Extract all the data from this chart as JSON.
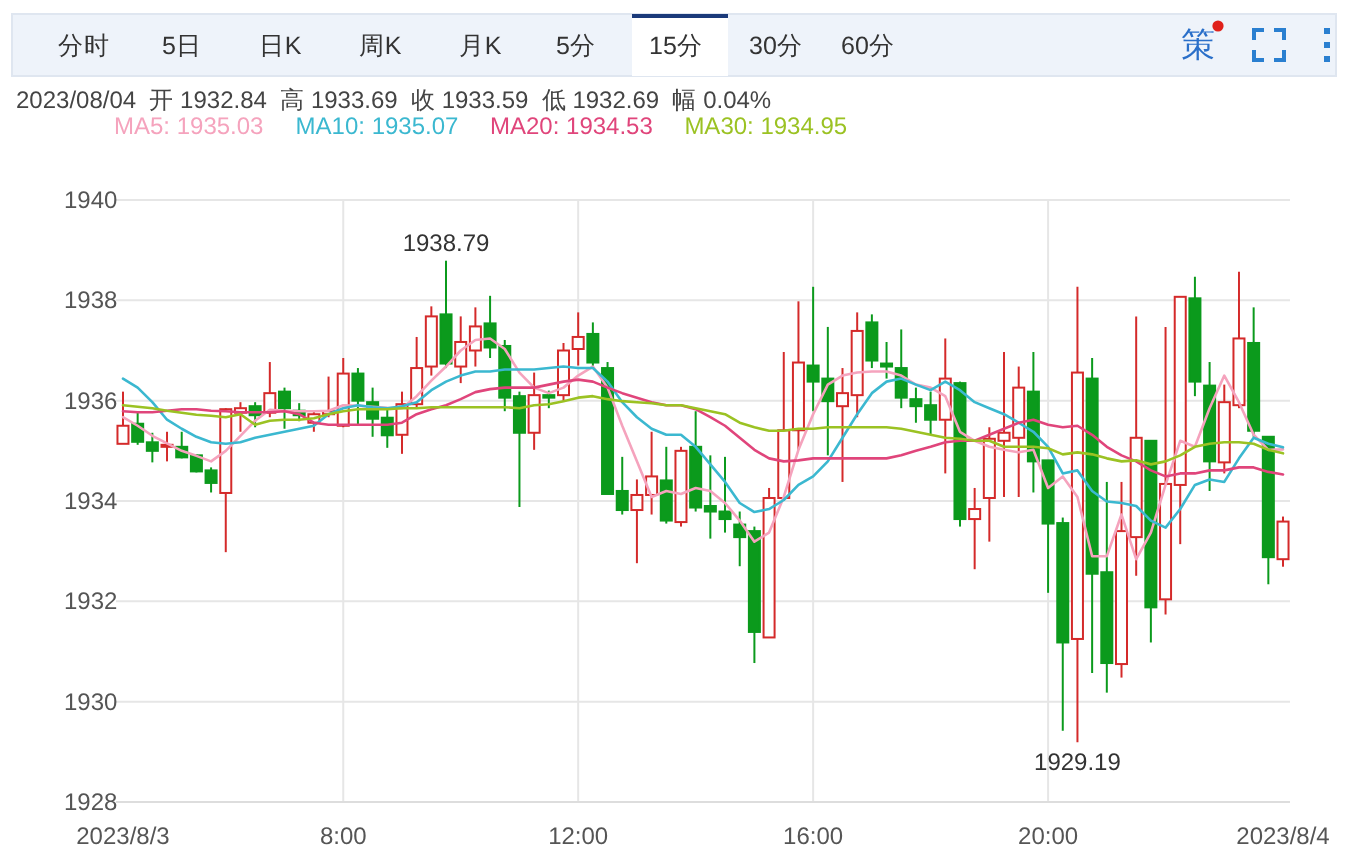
{
  "chart_data": {
    "type": "candlestick",
    "categories": [
      "2023/8/3",
      null,
      null,
      null,
      null,
      null,
      null,
      null,
      null,
      null,
      null,
      null,
      null,
      null,
      null,
      "8:00",
      null,
      null,
      null,
      null,
      null,
      null,
      null,
      null,
      null,
      null,
      null,
      null,
      null,
      null,
      null,
      "12:00",
      null,
      null,
      null,
      null,
      null,
      null,
      null,
      null,
      null,
      null,
      null,
      null,
      null,
      null,
      null,
      "16:00",
      null,
      null,
      null,
      null,
      null,
      null,
      null,
      null,
      null,
      null,
      null,
      null,
      null,
      null,
      null,
      "20:00",
      null,
      null,
      null,
      null,
      null,
      null,
      null,
      null,
      null,
      null,
      null,
      null,
      null,
      null,
      null,
      "2023/8/4"
    ],
    "ohlc": [
      [
        1935.14,
        1936.18,
        1935.14,
        1935.5
      ],
      [
        1935.54,
        1935.76,
        1935.12,
        1935.18
      ],
      [
        1935.17,
        1935.36,
        1934.77,
        1935.0
      ],
      [
        1935.08,
        1935.38,
        1934.79,
        1935.12
      ],
      [
        1935.08,
        1935.38,
        1934.85,
        1934.87
      ],
      [
        1934.91,
        1934.93,
        1934.57,
        1934.59
      ],
      [
        1934.61,
        1934.67,
        1934.17,
        1934.36
      ],
      [
        1934.16,
        1935.85,
        1932.98,
        1935.83
      ],
      [
        1935.76,
        1935.97,
        1935.38,
        1935.85
      ],
      [
        1935.89,
        1935.97,
        1935.47,
        1935.71
      ],
      [
        1935.76,
        1936.77,
        1935.67,
        1936.15
      ],
      [
        1936.18,
        1936.26,
        1935.44,
        1935.85
      ],
      [
        1935.8,
        1935.95,
        1935.59,
        1935.71
      ],
      [
        1935.56,
        1935.79,
        1935.38,
        1935.73
      ],
      [
        1935.73,
        1936.48,
        1935.67,
        1935.79
      ],
      [
        1935.5,
        1936.85,
        1935.47,
        1936.54
      ],
      [
        1936.54,
        1936.65,
        1935.5,
        1936.0
      ],
      [
        1935.97,
        1936.26,
        1935.28,
        1935.64
      ],
      [
        1935.66,
        1935.85,
        1935.06,
        1935.31
      ],
      [
        1935.32,
        1936.18,
        1934.94,
        1935.93
      ],
      [
        1935.93,
        1937.27,
        1935.85,
        1936.65
      ],
      [
        1936.68,
        1937.88,
        1936.5,
        1937.68
      ],
      [
        1937.72,
        1938.79,
        1936.65,
        1936.74
      ],
      [
        1936.68,
        1937.68,
        1936.35,
        1937.17
      ],
      [
        1937.0,
        1937.86,
        1936.68,
        1937.48
      ],
      [
        1937.54,
        1938.09,
        1936.85,
        1937.06
      ],
      [
        1937.09,
        1937.21,
        1935.79,
        1936.06
      ],
      [
        1936.09,
        1936.18,
        1933.88,
        1935.36
      ],
      [
        1935.36,
        1936.56,
        1935.02,
        1936.11
      ],
      [
        1936.11,
        1936.2,
        1935.85,
        1936.06
      ],
      [
        1936.11,
        1937.15,
        1935.99,
        1937.0
      ],
      [
        1937.03,
        1937.76,
        1936.7,
        1937.27
      ],
      [
        1937.33,
        1937.56,
        1936.68,
        1936.76
      ],
      [
        1936.65,
        1936.77,
        1934.14,
        1934.14
      ],
      [
        1934.2,
        1934.88,
        1933.73,
        1933.82
      ],
      [
        1933.82,
        1934.43,
        1932.76,
        1934.12
      ],
      [
        1934.12,
        1935.38,
        1933.73,
        1934.49
      ],
      [
        1934.41,
        1935.08,
        1933.55,
        1933.61
      ],
      [
        1933.58,
        1935.08,
        1933.49,
        1935.0
      ],
      [
        1935.08,
        1935.79,
        1933.79,
        1933.87
      ],
      [
        1933.9,
        1934.91,
        1933.25,
        1933.79
      ],
      [
        1933.79,
        1934.88,
        1933.37,
        1933.64
      ],
      [
        1933.53,
        1933.79,
        1932.7,
        1933.28
      ],
      [
        1933.4,
        1933.49,
        1930.77,
        1931.39
      ],
      [
        1931.28,
        1934.26,
        1931.28,
        1934.06
      ],
      [
        1934.06,
        1936.97,
        1934.0,
        1935.41
      ],
      [
        1935.41,
        1937.98,
        1935.02,
        1936.76
      ],
      [
        1936.7,
        1938.27,
        1935.79,
        1936.38
      ],
      [
        1936.44,
        1937.47,
        1934.91,
        1935.99
      ],
      [
        1935.89,
        1936.65,
        1934.38,
        1936.15
      ],
      [
        1936.11,
        1937.76,
        1935.67,
        1937.39
      ],
      [
        1937.56,
        1937.72,
        1936.65,
        1936.8
      ],
      [
        1936.74,
        1937.17,
        1936.44,
        1936.68
      ],
      [
        1936.65,
        1937.42,
        1935.85,
        1936.06
      ],
      [
        1936.03,
        1936.26,
        1935.56,
        1935.89
      ],
      [
        1935.91,
        1936.18,
        1935.32,
        1935.62
      ],
      [
        1935.62,
        1937.24,
        1934.55,
        1936.44
      ],
      [
        1936.35,
        1936.38,
        1933.49,
        1933.64
      ],
      [
        1933.64,
        1934.26,
        1932.64,
        1933.84
      ],
      [
        1934.06,
        1935.47,
        1933.19,
        1935.24
      ],
      [
        1935.2,
        1936.97,
        1934.08,
        1935.36
      ],
      [
        1935.26,
        1936.68,
        1934.08,
        1936.26
      ],
      [
        1936.18,
        1936.97,
        1934.17,
        1934.79
      ],
      [
        1934.81,
        1934.81,
        1932.17,
        1933.55
      ],
      [
        1933.56,
        1933.67,
        1929.42,
        1931.18
      ],
      [
        1931.25,
        1938.27,
        1929.19,
        1936.56
      ],
      [
        1936.44,
        1936.85,
        1930.57,
        1932.55
      ],
      [
        1932.58,
        1934.38,
        1930.18,
        1930.77
      ],
      [
        1930.75,
        1934.38,
        1930.48,
        1933.4
      ],
      [
        1933.28,
        1937.68,
        1932.51,
        1935.26
      ],
      [
        1935.2,
        1935.2,
        1931.18,
        1931.88
      ],
      [
        1932.04,
        1937.47,
        1931.74,
        1934.34
      ],
      [
        1934.32,
        1938.07,
        1933.14,
        1938.07
      ],
      [
        1938.04,
        1938.47,
        1936.09,
        1936.38
      ],
      [
        1936.3,
        1936.77,
        1934.2,
        1934.79
      ],
      [
        1934.77,
        1936.32,
        1934.55,
        1935.97
      ],
      [
        1935.91,
        1938.57,
        1935.85,
        1937.24
      ],
      [
        1937.15,
        1937.86,
        1935.28,
        1935.4
      ],
      [
        1935.28,
        1935.28,
        1932.34,
        1932.88
      ],
      [
        1932.84,
        1933.69,
        1932.69,
        1933.59
      ]
    ],
    "series": [
      {
        "name": "MA5: 1935.03",
        "type": "line",
        "color": "#f5a3bd",
        "values": [
          1935.67,
          1935.5,
          1935.3,
          1935.15,
          1935.0,
          1934.9,
          1934.79,
          1935.0,
          1935.3,
          1935.6,
          1935.82,
          1935.8,
          1935.79,
          1935.79,
          1935.8,
          1935.91,
          1935.9,
          1935.88,
          1935.86,
          1935.85,
          1936.09,
          1936.4,
          1936.68,
          1937.0,
          1937.21,
          1937.24,
          1937.03,
          1936.56,
          1936.26,
          1936.15,
          1936.26,
          1936.5,
          1936.68,
          1936.26,
          1935.5,
          1934.79,
          1934.08,
          1934.2,
          1934.14,
          1934.26,
          1934.2,
          1933.96,
          1933.61,
          1933.19,
          1933.37,
          1934.08,
          1935.02,
          1935.73,
          1936.32,
          1936.5,
          1936.56,
          1936.58,
          1936.58,
          1936.5,
          1936.32,
          1936.26,
          1936.09,
          1935.38,
          1935.2,
          1935.08,
          1935.02,
          1934.97,
          1935.02,
          1934.26,
          1934.49,
          1934.08,
          1932.9,
          1932.9,
          1933.73,
          1932.84,
          1933.37,
          1934.32,
          1935.2,
          1935.08,
          1935.85,
          1936.5,
          1935.97,
          1935.32,
          1935.02,
          1935.03
        ]
      },
      {
        "name": "MA10: 1935.07",
        "type": "line",
        "color": "#3bb8d0",
        "values": [
          1936.44,
          1936.26,
          1935.97,
          1935.62,
          1935.44,
          1935.28,
          1935.17,
          1935.14,
          1935.17,
          1935.26,
          1935.32,
          1935.38,
          1935.44,
          1935.5,
          1935.73,
          1935.85,
          1935.91,
          1935.87,
          1935.85,
          1935.89,
          1935.97,
          1936.21,
          1936.38,
          1936.5,
          1936.58,
          1936.58,
          1936.62,
          1936.62,
          1936.62,
          1936.65,
          1936.68,
          1936.65,
          1936.65,
          1936.38,
          1935.97,
          1935.67,
          1935.44,
          1935.32,
          1935.32,
          1935.08,
          1934.73,
          1934.38,
          1933.96,
          1933.78,
          1933.84,
          1934.02,
          1934.32,
          1934.49,
          1934.79,
          1935.26,
          1935.73,
          1936.15,
          1936.38,
          1936.44,
          1936.32,
          1936.21,
          1936.38,
          1936.21,
          1935.97,
          1935.85,
          1935.73,
          1935.56,
          1935.38,
          1935.08,
          1934.55,
          1934.61,
          1934.2,
          1933.99,
          1933.96,
          1933.9,
          1933.61,
          1933.47,
          1933.84,
          1934.32,
          1934.43,
          1934.38,
          1934.85,
          1935.26,
          1935.14,
          1935.07
        ]
      },
      {
        "name": "MA20: 1934.53",
        "type": "line",
        "color": "#e0457b",
        "values": [
          1935.79,
          1935.77,
          1935.77,
          1935.8,
          1935.83,
          1935.83,
          1935.8,
          1935.79,
          1935.77,
          1935.77,
          1935.77,
          1935.79,
          1935.73,
          1935.56,
          1935.52,
          1935.52,
          1935.52,
          1935.52,
          1935.52,
          1935.56,
          1935.73,
          1935.83,
          1935.91,
          1936.03,
          1936.17,
          1936.23,
          1936.26,
          1936.26,
          1936.26,
          1936.32,
          1936.38,
          1936.42,
          1936.38,
          1936.26,
          1936.15,
          1936.06,
          1935.97,
          1935.91,
          1935.91,
          1935.83,
          1935.67,
          1935.5,
          1935.26,
          1935.02,
          1934.85,
          1934.79,
          1934.81,
          1934.85,
          1934.85,
          1934.85,
          1934.85,
          1934.85,
          1934.85,
          1934.91,
          1935.0,
          1935.08,
          1935.17,
          1935.2,
          1935.2,
          1935.32,
          1935.44,
          1935.56,
          1935.62,
          1935.52,
          1935.47,
          1935.5,
          1935.32,
          1935.08,
          1934.91,
          1934.79,
          1934.61,
          1934.49,
          1934.55,
          1934.55,
          1934.61,
          1934.61,
          1934.67,
          1934.67,
          1934.58,
          1934.53
        ]
      },
      {
        "name": "MA30: 1934.95",
        "type": "line",
        "color": "#9bc223",
        "values": [
          1935.91,
          1935.88,
          1935.85,
          1935.8,
          1935.76,
          1935.72,
          1935.7,
          1935.67,
          1935.73,
          1935.52,
          1935.6,
          1935.62,
          1935.62,
          1935.65,
          1935.73,
          1935.79,
          1935.83,
          1935.83,
          1935.83,
          1935.85,
          1935.85,
          1935.87,
          1935.87,
          1935.87,
          1935.87,
          1935.87,
          1935.87,
          1935.85,
          1935.91,
          1935.93,
          1935.99,
          1936.06,
          1936.09,
          1936.03,
          1935.99,
          1935.97,
          1935.95,
          1935.91,
          1935.91,
          1935.85,
          1935.79,
          1935.73,
          1935.56,
          1935.47,
          1935.4,
          1935.4,
          1935.44,
          1935.44,
          1935.47,
          1935.47,
          1935.47,
          1935.47,
          1935.47,
          1935.44,
          1935.38,
          1935.32,
          1935.26,
          1935.24,
          1935.2,
          1935.2,
          1935.08,
          1935.08,
          1935.08,
          1935.05,
          1934.93,
          1934.97,
          1934.93,
          1934.85,
          1934.79,
          1934.81,
          1934.73,
          1934.79,
          1934.91,
          1935.08,
          1935.14,
          1935.17,
          1935.17,
          1935.14,
          1935.02,
          1934.95
        ]
      }
    ],
    "ylim": [
      1928,
      1940
    ],
    "yticks": [
      1928,
      1930,
      1932,
      1934,
      1936,
      1938,
      1940
    ],
    "grid": true,
    "legend": "top left",
    "annotations": [
      "分时",
      "5日",
      "日K",
      "周K",
      "月K",
      "5分",
      "15分",
      "30分",
      "60分",
      "策",
      "2023/08/04  开 1932.84  高 1933.69  收 1933.59  低 1932.69  幅 0.04%",
      "1938.79",
      "1929.19"
    ]
  }
}
